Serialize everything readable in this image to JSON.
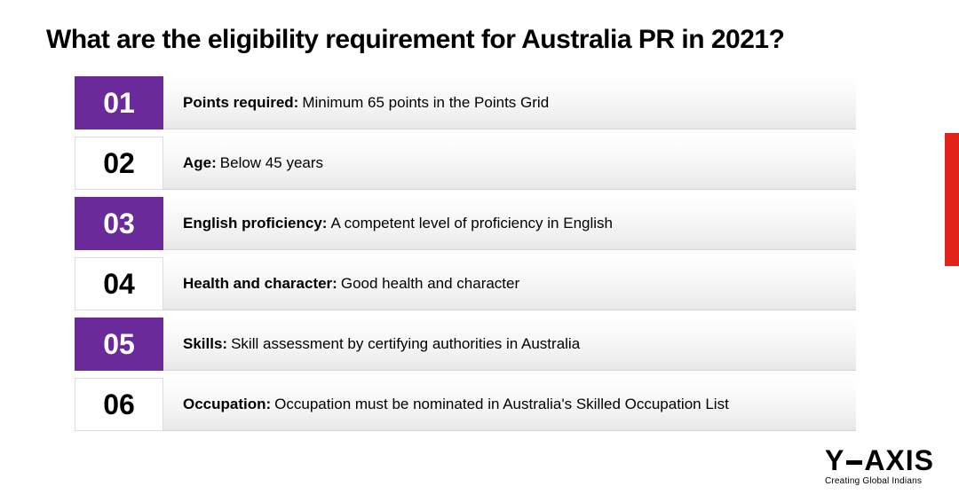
{
  "title": "What are the eligibility requirement for Australia PR in 2021?",
  "colors": {
    "purple": "#6b2a9a",
    "red": "#e2231a",
    "white": "#ffffff",
    "black": "#000000"
  },
  "items": [
    {
      "num": "01",
      "style": "purple",
      "label": "Points required:",
      "desc": "Minimum 65 points in the Points Grid"
    },
    {
      "num": "02",
      "style": "white",
      "label": "Age:",
      "desc": "Below 45 years"
    },
    {
      "num": "03",
      "style": "purple",
      "label": "English proficiency:",
      "desc": "A competent level of proficiency in English"
    },
    {
      "num": "04",
      "style": "white",
      "label": "Health and character:",
      "desc": "Good health and character"
    },
    {
      "num": "05",
      "style": "purple",
      "label": "Skills:",
      "desc": "Skill assessment by certifying authorities in Australia"
    },
    {
      "num": "06",
      "style": "white",
      "label": "Occupation:",
      "desc": "Occupation must be nominated in Australia's Skilled Occupation List"
    }
  ],
  "logo": {
    "letter1": "Y",
    "letter2": "AXIS",
    "tagline": "Creating Global Indians"
  }
}
